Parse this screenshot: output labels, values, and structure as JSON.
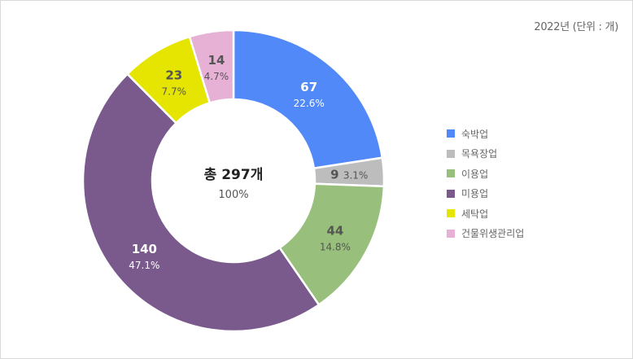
{
  "unit_label": "2022년 (단위 : 개)",
  "center": {
    "title": "총 297개",
    "percent": "100%"
  },
  "chart_data": {
    "type": "pie",
    "donut": true,
    "title": "",
    "unit": "개",
    "year": "2022년",
    "total": 297,
    "categories": [
      "숙박업",
      "목욕장업",
      "이용업",
      "미용업",
      "세탁업",
      "건물위생관리업"
    ],
    "values": [
      67,
      9,
      44,
      140,
      23,
      14
    ],
    "percents": [
      "22.6%",
      "3.1%",
      "14.8%",
      "47.1%",
      "7.7%",
      "4.7%"
    ],
    "colors": [
      "#5289f8",
      "#bdbdbd",
      "#98bf7c",
      "#7a5a8c",
      "#e5e501",
      "#e6b1d4"
    ],
    "label_colors": [
      "#ffffff",
      "#555555",
      "#555555",
      "#ffffff",
      "#555555",
      "#555555"
    ],
    "legend_position": "right"
  },
  "legend": [
    {
      "label": "숙박업",
      "color": "#5289f8"
    },
    {
      "label": "목욕장업",
      "color": "#bdbdbd"
    },
    {
      "label": "이용업",
      "color": "#98bf7c"
    },
    {
      "label": "미용업",
      "color": "#7a5a8c"
    },
    {
      "label": "세탁업",
      "color": "#e5e501"
    },
    {
      "label": "건물위생관리업",
      "color": "#e6b1d4"
    }
  ]
}
